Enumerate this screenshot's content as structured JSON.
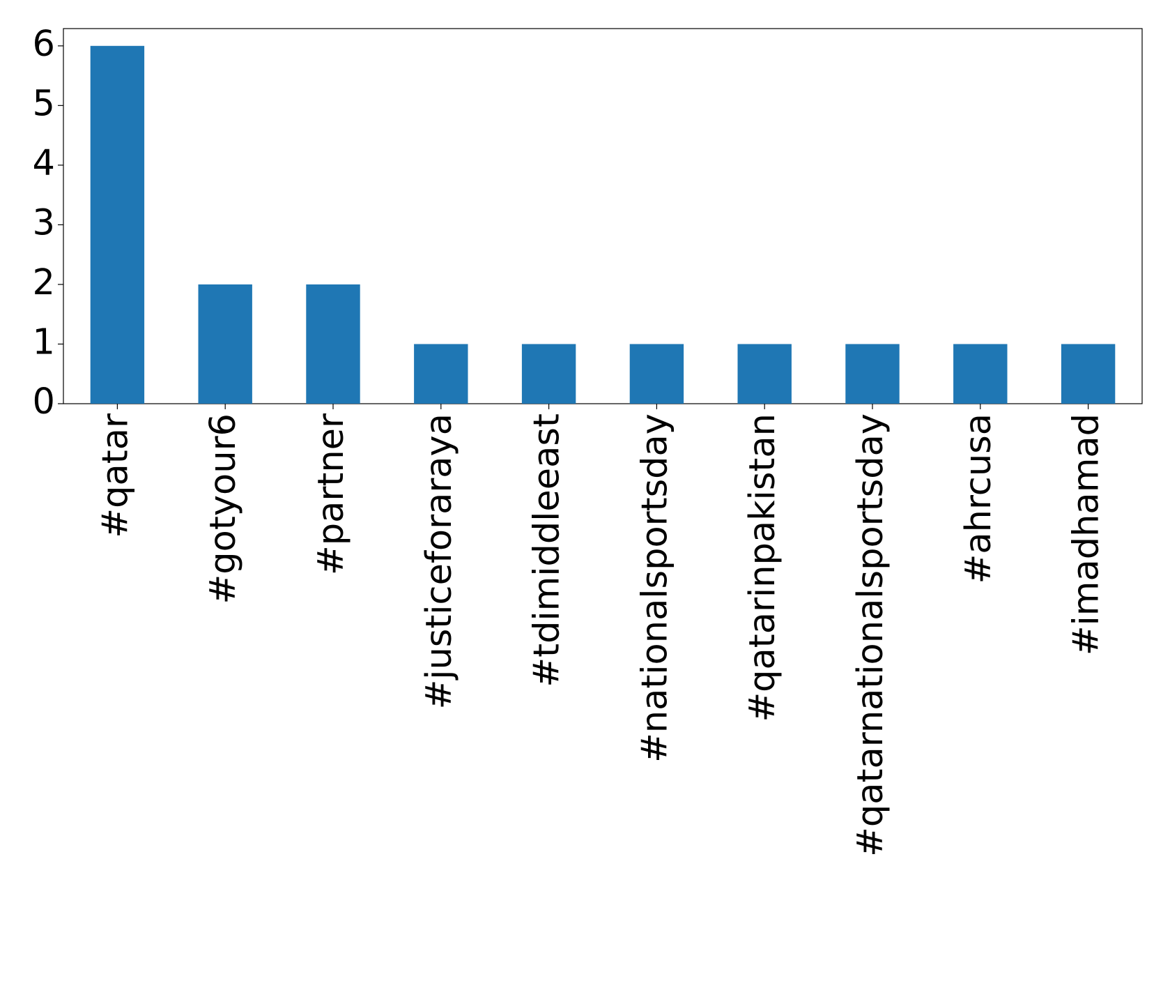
{
  "chart_data": {
    "type": "bar",
    "categories": [
      "#qatar",
      "#gotyour6",
      "#partner",
      "#justiceforaraya",
      "#tdimiddleeast",
      "#nationalsportsday",
      "#qatarinpakistan",
      "#qatarnationalsportsday",
      "#ahrcusa",
      "#imadhamad"
    ],
    "values": [
      6,
      2,
      2,
      1,
      1,
      1,
      1,
      1,
      1,
      1
    ],
    "color": "#1f77b4",
    "ylim": [
      0,
      6.29
    ],
    "yticks": [
      0,
      1,
      2,
      3,
      4,
      5,
      6
    ],
    "grid": false
  }
}
